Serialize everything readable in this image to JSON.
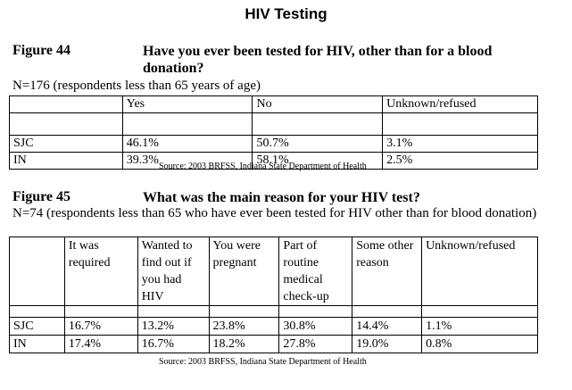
{
  "page_title": "HIV Testing",
  "figure44": {
    "label": "Figure 44",
    "question": "Have you ever been tested for HIV, other than for a blood donation?",
    "note": "N=176 (respondents less than 65 years of age)",
    "headers": [
      "",
      "Yes",
      "No",
      "Unknown/refused"
    ],
    "rows": [
      [
        "SJC",
        "46.1%",
        "50.7%",
        "3.1%"
      ],
      [
        "IN",
        "39.3%",
        "58.1%",
        "2.5%"
      ]
    ],
    "source": "Source:  2003 BRFSS, Indiana State Department of Health"
  },
  "figure45": {
    "label": "Figure 45",
    "question": "What was the main reason for your HIV test?",
    "note": "N=74 (respondents less than 65 who have ever been tested for HIV other than for blood donation)",
    "headers": [
      "",
      "It was required",
      "Wanted to find out if you had HIV",
      "You were pregnant",
      "Part of routine medical check-up",
      "Some other reason",
      "Unknown/refused"
    ],
    "rows": [
      [
        "SJC",
        "16.7%",
        "13.2%",
        "23.8%",
        "30.8%",
        "14.4%",
        "1.1%"
      ],
      [
        "IN",
        "17.4%",
        "16.7%",
        "18.2%",
        "27.8%",
        "19.0%",
        "0.8%"
      ]
    ],
    "source": "Source:  2003 BRFSS, Indiana State Department of Health"
  }
}
